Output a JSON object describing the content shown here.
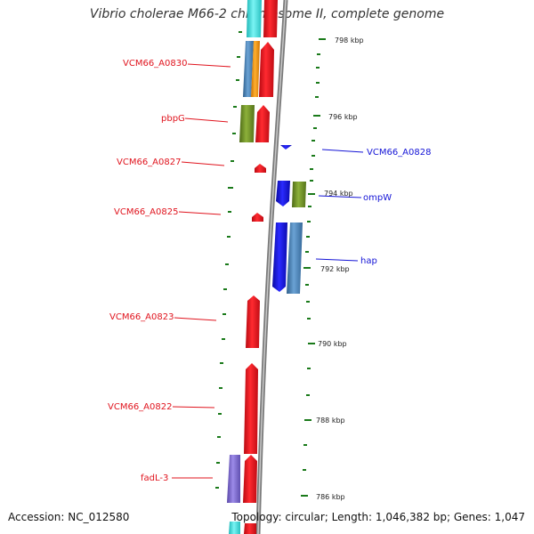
{
  "title": "Vibrio cholerae M66-2 chromosome II, complete genome",
  "accession": "Accession: NC_012580",
  "summary": "Topology: circular; Length: 1,046,382 bp; Genes: 1,047",
  "colors": {
    "red": "#e0141e",
    "blue": "#1414d6",
    "steel_blue": "#4682b4",
    "olive": "#6b8e23",
    "orange": "#f0900a",
    "cyan": "#40e0e0",
    "purple": "#7b68cc",
    "green_tick": "#1a7a1a",
    "backbone": "#888888"
  },
  "kbp_marks": [
    "798 kbp",
    "796 kbp",
    "794 kbp",
    "792 kbp",
    "790 kbp",
    "788 kbp",
    "786 kbp"
  ],
  "left_labels": [
    "VCM66_A0830",
    "pbpG",
    "VCM66_A0827",
    "VCM66_A0825",
    "VCM66_A0823",
    "VCM66_A0822",
    "fadL-3"
  ],
  "right_labels": [
    "VCM66_A0828",
    "ompW",
    "hap"
  ]
}
